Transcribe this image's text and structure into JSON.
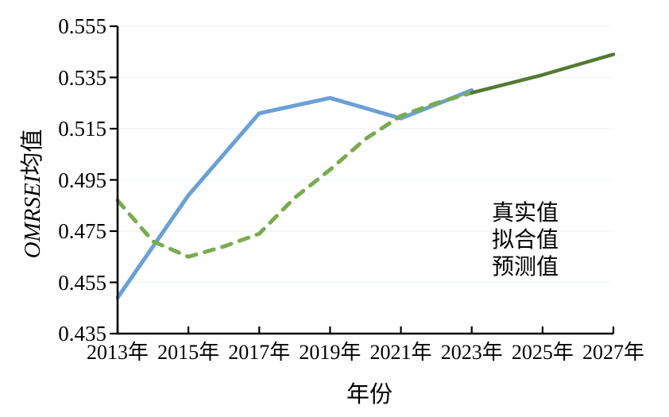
{
  "chart_data": {
    "type": "line",
    "title": "",
    "xlabel": "年份",
    "ylabel": "OMRSEI均值",
    "ylabel_italic_part": "OMRSEI",
    "ylabel_cjk_part": "均值",
    "xlim": [
      2013,
      2027
    ],
    "ylim": [
      0.435,
      0.555
    ],
    "grid": "faint horizontal gridlines at y ticks",
    "legend_position": "right-center, text only (no swatches)",
    "axis_color": "#000000",
    "xticks": [
      {
        "value": 2013,
        "label": "2013年"
      },
      {
        "value": 2015,
        "label": "2015年"
      },
      {
        "value": 2017,
        "label": "2017年"
      },
      {
        "value": 2019,
        "label": "2019年"
      },
      {
        "value": 2021,
        "label": "2021年"
      },
      {
        "value": 2023,
        "label": "2023年"
      },
      {
        "value": 2025,
        "label": "2025年"
      },
      {
        "value": 2027,
        "label": "2027年"
      }
    ],
    "yticks": [
      {
        "value": 0.435,
        "label": "0.435"
      },
      {
        "value": 0.455,
        "label": "0.455"
      },
      {
        "value": 0.475,
        "label": "0.475"
      },
      {
        "value": 0.495,
        "label": "0.495"
      },
      {
        "value": 0.515,
        "label": "0.515"
      },
      {
        "value": 0.535,
        "label": "0.535"
      },
      {
        "value": 0.555,
        "label": "0.555"
      }
    ],
    "series": [
      {
        "name": "真实值",
        "style": "solid",
        "color": "#68a1d6",
        "width": 5,
        "x": [
          2013,
          2015,
          2017,
          2019,
          2021,
          2023
        ],
        "y": [
          0.449,
          0.489,
          0.521,
          0.527,
          0.519,
          0.53
        ]
      },
      {
        "name": "拟合值",
        "style": "dashed",
        "color": "#79ac4d",
        "width": 5,
        "x": [
          2013,
          2014,
          2015,
          2016,
          2017,
          2018,
          2019,
          2020,
          2021,
          2022,
          2023
        ],
        "y": [
          0.487,
          0.471,
          0.465,
          0.469,
          0.474,
          0.488,
          0.499,
          0.511,
          0.52,
          0.525,
          0.529
        ]
      },
      {
        "name": "预测值",
        "style": "solid",
        "color": "#507c30",
        "width": 4.5,
        "x": [
          2023,
          2025,
          2027
        ],
        "y": [
          0.529,
          0.536,
          0.544
        ]
      }
    ]
  }
}
